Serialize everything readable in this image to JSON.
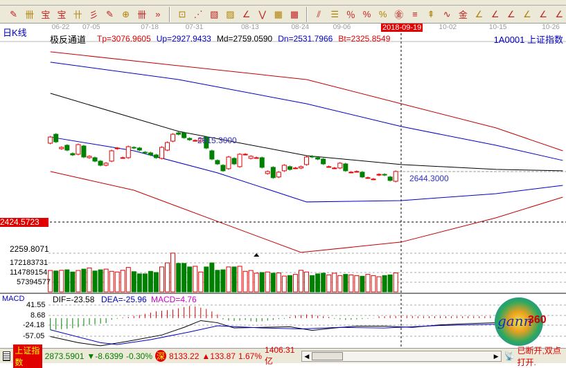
{
  "toolbar": {
    "icons": [
      "pen-icon",
      "grid-icon",
      "gold-icon",
      "gold2-icon",
      "fib-icon",
      "spiral-icon",
      "pen2-icon",
      "circle-grid-icon",
      "grid2-icon",
      "more-icon",
      "box-icon",
      "fan-icon",
      "gann-box-icon",
      "gann-square-icon",
      "angle-icon",
      "zigzag-icon",
      "grid3-icon",
      "grid4-icon",
      "parallel-icon",
      "ruler-icon",
      "percent-line-icon",
      "percent-icon",
      "percent2-icon",
      "gold-circle-icon",
      "gold-line-icon",
      "rocket-icon",
      "wave-icon",
      "gold3-icon",
      "fan2-icon",
      "fan3-icon",
      "fan4-icon",
      "fan5-icon",
      "fan6-icon",
      "fan7-icon"
    ],
    "glyphs": [
      "✎",
      "卌",
      "宝",
      "宝",
      "卄",
      "彡",
      "✎",
      "⊕",
      "卌",
      "»",
      "⊡",
      "⋰",
      "▧",
      "▨",
      "∠",
      "⋁",
      "▦",
      "▦",
      "⫽",
      "☰",
      "％",
      "%",
      "%",
      "㊎",
      "≡",
      "⇞",
      "∿",
      "金",
      "∠",
      "∠",
      "∠",
      "∠",
      "∠",
      "∠"
    ]
  },
  "period_label": "日K线",
  "indicator_name": "极反通道",
  "indicator_values": [
    {
      "text": "Tp=3076.9605",
      "color": "#e00000"
    },
    {
      "text": "Up=2927.9433",
      "color": "#0000c0"
    },
    {
      "text": "Md=2759.0590",
      "color": "#000000"
    },
    {
      "text": "Dn=2531.7966",
      "color": "#0000c0"
    },
    {
      "text": "Bt=2325.8549",
      "color": "#e00000"
    }
  ],
  "security": "1A0001 上证指数",
  "dates": [
    {
      "t": "06-22",
      "i": 2
    },
    {
      "t": "07-05",
      "i": 7.5
    },
    {
      "t": "07-18",
      "i": 18
    },
    {
      "t": "07-31",
      "i": 26
    },
    {
      "t": "08-13",
      "i": 36
    },
    {
      "t": "08-24",
      "i": 45
    },
    {
      "t": "09-06",
      "i": 52.5
    },
    {
      "t": "10-02",
      "i": 71.5
    },
    {
      "t": "10-15",
      "i": 80.5
    },
    {
      "t": "10-26",
      "i": 90
    }
  ],
  "cursor_date": "2018-09-19",
  "cursor_price": "2424.5723",
  "axis_low_label": "2259.8071",
  "high_mark": "2915.3000",
  "low_mark": "2644.3000",
  "volume_labels": [
    "172183731",
    "114789154",
    "57394577"
  ],
  "macd": {
    "title": "MACD",
    "dif": "DIF=-23.58",
    "dea": "DEA=-25.96",
    "macd": "MACD=4.76",
    "ticks": [
      "41.55",
      "8.68",
      "-24.18",
      "-57.05"
    ],
    "hist": [
      -38,
      -38,
      -36,
      -35,
      -33,
      -30,
      -26,
      -22,
      -20,
      -18,
      -16,
      -5,
      -2,
      2,
      4,
      7,
      10,
      14,
      18,
      22,
      24,
      26,
      28,
      32,
      36,
      40,
      38,
      34,
      30,
      22,
      12,
      -4,
      -8,
      -9,
      -8,
      -6,
      -10,
      -12,
      -10,
      -8,
      -6,
      -3,
      -2,
      4,
      8,
      10,
      12,
      11,
      8,
      6,
      4,
      -2,
      -4,
      -6,
      -5,
      -4,
      -3,
      -2,
      -1,
      6,
      6,
      7,
      7,
      7,
      7,
      7,
      6,
      6,
      6,
      6,
      6,
      6,
      6,
      6,
      6,
      6,
      6,
      6,
      6,
      6,
      6
    ],
    "dif_pts": [
      [
        0,
        -60
      ],
      [
        5,
        -80
      ],
      [
        9,
        -90
      ],
      [
        14,
        -75
      ],
      [
        20,
        -55
      ],
      [
        24,
        -30
      ],
      [
        27,
        -8
      ],
      [
        30,
        -15
      ],
      [
        33,
        -32
      ],
      [
        38,
        -30
      ],
      [
        43,
        -28
      ],
      [
        47,
        -40
      ],
      [
        51,
        -32
      ],
      [
        55,
        -26
      ],
      [
        60,
        -26
      ],
      [
        65,
        -30
      ],
      [
        70,
        -22
      ],
      [
        75,
        -18
      ],
      [
        80,
        -15
      ]
    ],
    "dea_pts": [
      [
        0,
        -38
      ],
      [
        9,
        -80
      ],
      [
        12,
        -86
      ],
      [
        18,
        -70
      ],
      [
        25,
        -45
      ],
      [
        30,
        -25
      ],
      [
        38,
        -32
      ],
      [
        45,
        -35
      ],
      [
        52,
        -30
      ],
      [
        60,
        -32
      ],
      [
        65,
        -28
      ],
      [
        70,
        -24
      ],
      [
        80,
        -20
      ]
    ]
  },
  "chart_data": {
    "type": "candlestick",
    "candles": [
      [
        2895,
        2940
      ],
      [
        2960,
        2905
      ],
      [
        2855,
        2865
      ],
      [
        2880,
        2845
      ],
      [
        2820,
        2810
      ],
      [
        2815,
        2885
      ],
      [
        2875,
        2795
      ],
      [
        2790,
        2800
      ],
      [
        2790,
        2765
      ],
      [
        2765,
        2735
      ],
      [
        2735,
        2750
      ],
      [
        2765,
        2840
      ],
      [
        2855,
        2860
      ],
      [
        2790,
        2790
      ],
      [
        2790,
        2870
      ],
      [
        2865,
        2860
      ],
      [
        2860,
        2845
      ],
      [
        2830,
        2825
      ],
      [
        2825,
        2810
      ],
      [
        2810,
        2790
      ],
      [
        2785,
        2865
      ],
      [
        2845,
        2900
      ],
      [
        2910,
        2960
      ],
      [
        2970,
        2960
      ],
      [
        2970,
        2935
      ],
      [
        2930,
        2920
      ],
      [
        2915,
        2915
      ],
      [
        2910,
        2930
      ],
      [
        2940,
        2860
      ],
      [
        2840,
        2780
      ],
      [
        2770,
        2745
      ],
      [
        2735,
        2695
      ],
      [
        2710,
        2795
      ],
      [
        2785,
        2745
      ],
      [
        2725,
        2815
      ],
      [
        2815,
        2815
      ],
      [
        2785,
        2800
      ],
      [
        2790,
        2790
      ],
      [
        2790,
        2720
      ],
      [
        2675,
        2690
      ],
      [
        2720,
        2645
      ],
      [
        2650,
        2685
      ],
      [
        2695,
        2735
      ],
      [
        2725,
        2705
      ],
      [
        2715,
        2715
      ],
      [
        2715,
        2725
      ],
      [
        2740,
        2795
      ],
      [
        2800,
        2795
      ],
      [
        2790,
        2780
      ],
      [
        2780,
        2745
      ],
      [
        2725,
        2725
      ],
      [
        2715,
        2715
      ],
      [
        2715,
        2750
      ],
      [
        2745,
        2695
      ],
      [
        2685,
        2685
      ],
      [
        2690,
        2690
      ],
      [
        2685,
        2650
      ],
      [
        2645,
        2645
      ],
      [
        2635,
        2635
      ],
      [
        2664,
        2669
      ],
      [
        2669,
        2664
      ],
      [
        2650,
        2625
      ],
      [
        2619,
        2690
      ]
    ],
    "volume_millions": [
      127,
      124,
      128,
      131,
      118,
      127,
      135,
      142,
      124,
      131,
      135,
      122,
      118,
      128,
      145,
      120,
      107,
      107,
      122,
      115,
      148,
      172,
      230,
      169,
      169,
      148,
      152,
      118,
      148,
      172,
      128,
      131,
      148,
      148,
      152,
      122,
      127,
      111,
      115,
      118,
      111,
      113,
      94,
      97,
      104,
      128,
      118,
      97,
      107,
      111,
      101,
      111,
      97,
      104,
      101,
      97,
      93,
      104,
      97,
      90,
      97,
      101,
      113
    ],
    "channel": {
      "Tp": [
        [
          0,
          3558
        ],
        [
          23,
          3457
        ],
        [
          46,
          3357
        ],
        [
          63,
          3181
        ],
        [
          80,
          3006
        ],
        [
          92,
          2840
        ]
      ],
      "Up": [
        [
          0,
          3483
        ],
        [
          23,
          3357
        ],
        [
          46,
          3181
        ],
        [
          63,
          3016
        ],
        [
          80,
          2880
        ],
        [
          92,
          2770
        ]
      ],
      "Md": [
        [
          0,
          3257
        ],
        [
          23,
          2981
        ],
        [
          46,
          2805
        ],
        [
          63,
          2740
        ],
        [
          80,
          2705
        ],
        [
          92,
          2695
        ]
      ],
      "Dn": [
        [
          0,
          2940
        ],
        [
          15,
          2840
        ],
        [
          30,
          2680
        ],
        [
          46,
          2469
        ],
        [
          63,
          2479
        ],
        [
          80,
          2529
        ],
        [
          92,
          2589
        ]
      ],
      "Bt": [
        [
          0,
          2690
        ],
        [
          15,
          2554
        ],
        [
          30,
          2328
        ],
        [
          45,
          2103
        ],
        [
          63,
          2178
        ],
        [
          80,
          2354
        ],
        [
          92,
          2504
        ]
      ]
    }
  },
  "colors": {
    "up": "#e00000",
    "down": "#008000",
    "tp": "#c00000",
    "up_line": "#0000c0",
    "md": "#000000",
    "dn": "#0000c0",
    "bt": "#c00000",
    "panel": "#ece9d8"
  },
  "status": {
    "index_name": "上证指数",
    "index_price": "2873.5901",
    "index_change": "▼-8.6399",
    "index_pct": "-0.30%",
    "sz_badge": "深",
    "sz_price": "8133.22",
    "sz_change": "▲133.87",
    "sz_pct": "1.67%",
    "amount": "1406.31亿",
    "connection": "已断开,双点打开."
  }
}
